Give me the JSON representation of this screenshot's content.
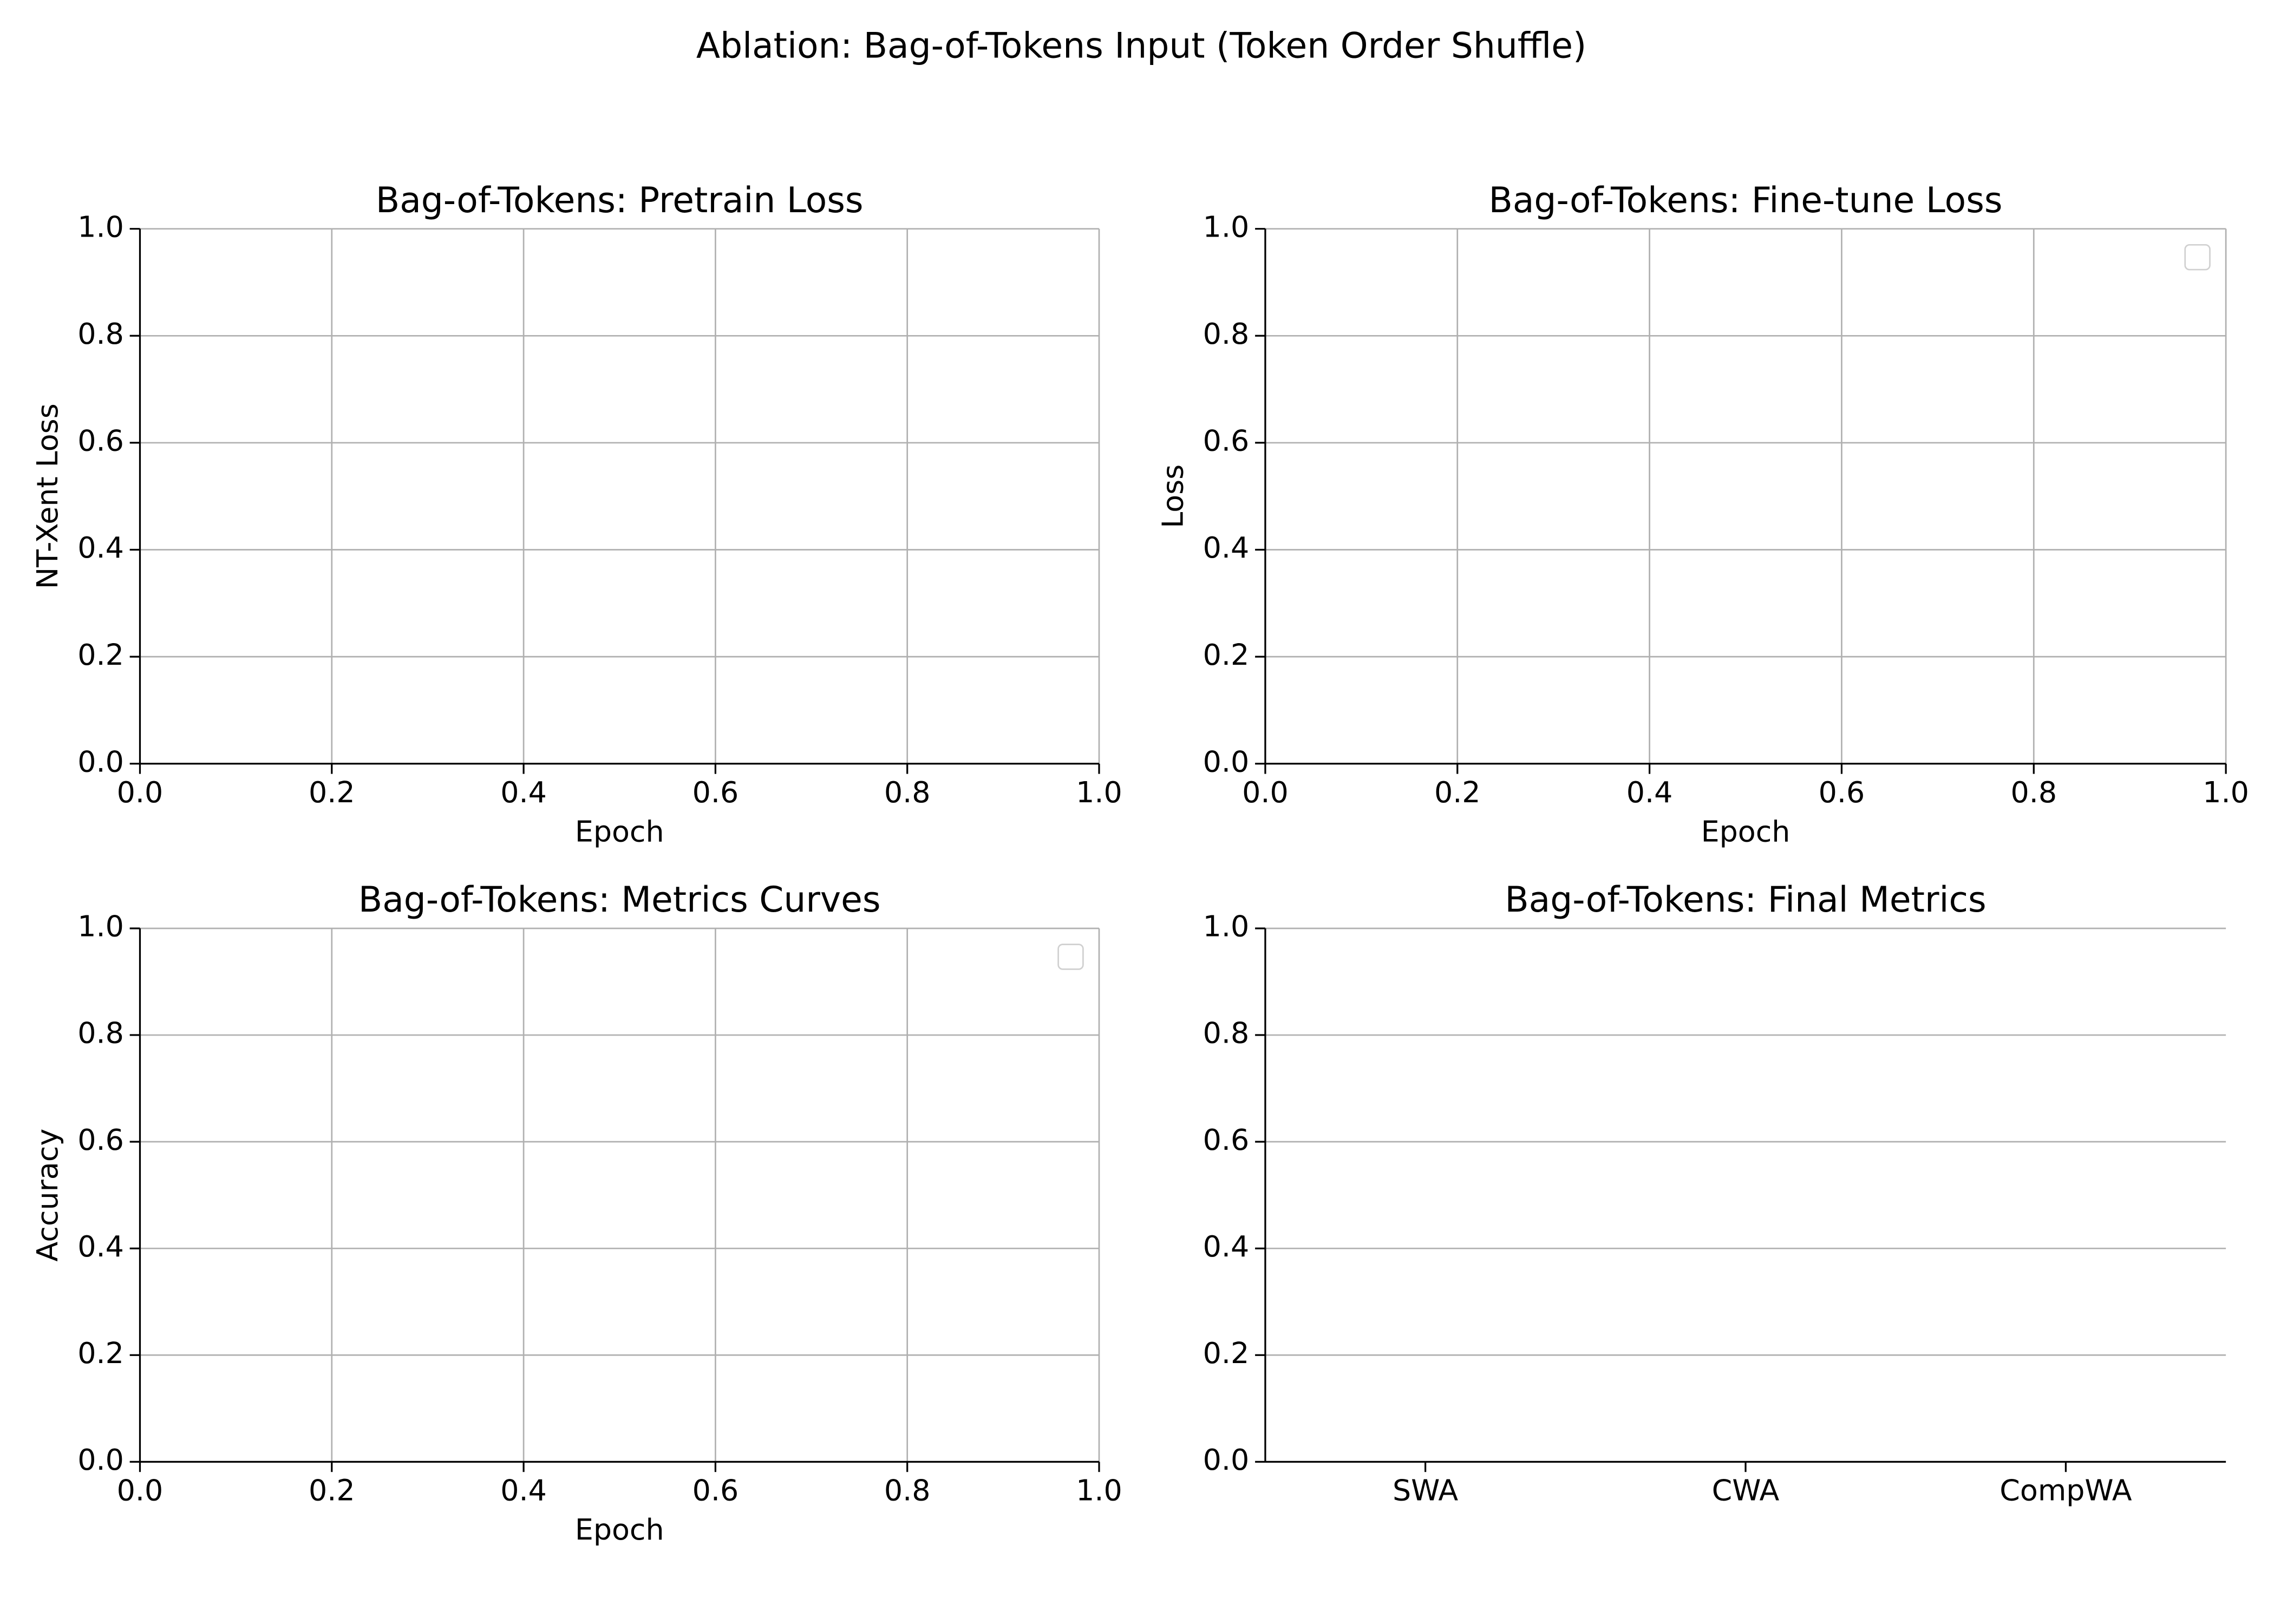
{
  "title": "Ablation: Bag-of-Tokens Input (Token Order Shuffle)",
  "chart_data": [
    {
      "type": "line",
      "title": "Bag-of-Tokens: Pretrain Loss",
      "xlabel": "Epoch",
      "ylabel": "NT-Xent Loss",
      "xlim": [
        0,
        1
      ],
      "ylim": [
        0,
        1
      ],
      "xticks": [
        {
          "value": 0,
          "label": "0.0"
        },
        0.2,
        0.4,
        0.6,
        0.8,
        {
          "value": 1,
          "label": "1.0"
        }
      ],
      "yticks": [
        {
          "value": 0,
          "label": "0.0"
        },
        0.2,
        0.4,
        0.6,
        0.8,
        {
          "value": 1,
          "label": "1.0"
        }
      ],
      "grid": "both",
      "series": []
    },
    {
      "type": "line",
      "title": "Bag-of-Tokens: Fine-tune Loss",
      "xlabel": "Epoch",
      "ylabel": "Loss",
      "xlim": [
        0,
        1
      ],
      "ylim": [
        0,
        1
      ],
      "xticks": [
        {
          "value": 0,
          "label": "0.0"
        },
        0.2,
        0.4,
        0.6,
        0.8,
        {
          "value": 1,
          "label": "1.0"
        }
      ],
      "yticks": [
        {
          "value": 0,
          "label": "0.0"
        },
        0.2,
        0.4,
        0.6,
        0.8,
        {
          "value": 1,
          "label": "1.0"
        }
      ],
      "grid": "both",
      "legend": "upper right",
      "series": []
    },
    {
      "type": "line",
      "title": "Bag-of-Tokens: Metrics Curves",
      "xlabel": "Epoch",
      "ylabel": "Accuracy",
      "xlim": [
        0,
        1
      ],
      "ylim": [
        0,
        1
      ],
      "xticks": [
        {
          "value": 0,
          "label": "0.0"
        },
        0.2,
        0.4,
        0.6,
        0.8,
        {
          "value": 1,
          "label": "1.0"
        }
      ],
      "yticks": [
        {
          "value": 0,
          "label": "0.0"
        },
        0.2,
        0.4,
        0.6,
        0.8,
        {
          "value": 1,
          "label": "1.0"
        }
      ],
      "grid": "both",
      "legend": "upper right",
      "series": []
    },
    {
      "type": "bar",
      "title": "Bag-of-Tokens: Final Metrics",
      "categories": [
        "SWA",
        "CWA",
        "CompWA"
      ],
      "ylim": [
        0,
        1
      ],
      "yticks": [
        {
          "value": 0,
          "label": "0.0"
        },
        0.2,
        0.4,
        0.6,
        0.8,
        {
          "value": 1,
          "label": "1.0"
        }
      ],
      "grid": "y"
    }
  ]
}
